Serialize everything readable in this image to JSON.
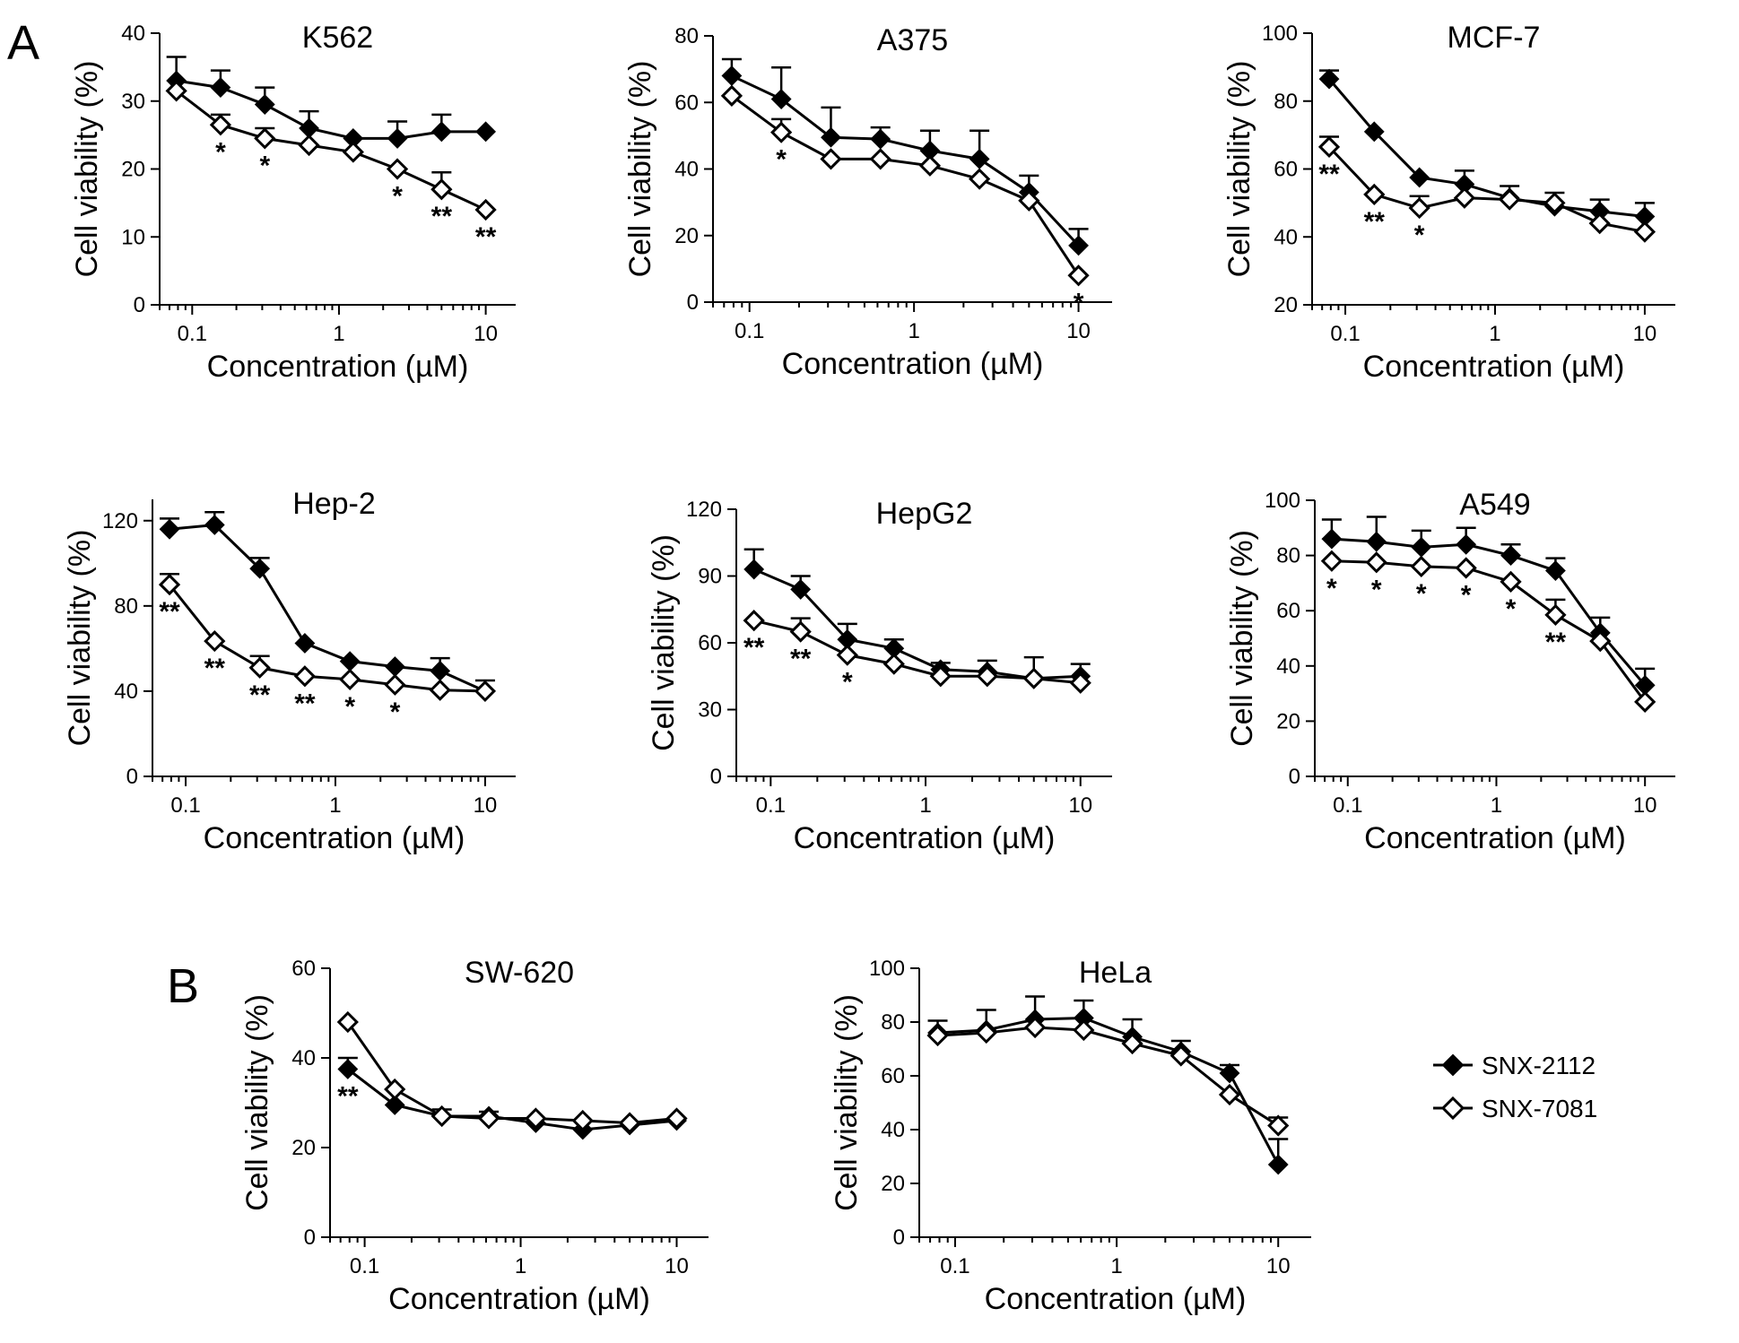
{
  "figure": {
    "panel_labels": [
      "A",
      "B"
    ],
    "legend": [
      {
        "name": "SNX-2112",
        "marker": "filled-diamond"
      },
      {
        "name": "SNX-7081",
        "marker": "open-diamond"
      }
    ]
  },
  "chart_data": [
    {
      "type": "line",
      "title": "K562",
      "xscale": "log",
      "xlabel": "Concentration (µM)",
      "ylabel": "Cell viability (%)",
      "xticks": [
        0.1,
        1,
        10
      ],
      "xtick_labels": [
        "0.1",
        "1",
        "10"
      ],
      "ylim": [
        0,
        40
      ],
      "yticks": [
        0,
        10,
        20,
        30,
        40
      ],
      "ytick_labels": [
        "0",
        "10",
        "20",
        "30",
        "40"
      ],
      "x": [
        0.078,
        0.156,
        0.3125,
        0.625,
        1.25,
        2.5,
        5,
        10
      ],
      "series": [
        {
          "name": "SNX-2112",
          "values": [
            33,
            32,
            29.5,
            26,
            24.5,
            24.5,
            25.5,
            25.5
          ],
          "errors": [
            3.5,
            2.5,
            2.5,
            2.5,
            0,
            2.5,
            2.5,
            0
          ]
        },
        {
          "name": "SNX-7081",
          "values": [
            31.5,
            26.5,
            24.5,
            23.5,
            22.5,
            20,
            17,
            14
          ],
          "errors": [
            0,
            1.5,
            1.5,
            0,
            0,
            0,
            2.5,
            0
          ]
        }
      ],
      "annotations": [
        {
          "x": 0.156,
          "text": "*"
        },
        {
          "x": 0.3125,
          "text": "*"
        },
        {
          "x": 2.5,
          "text": "*"
        },
        {
          "x": 5,
          "text": "**"
        },
        {
          "x": 10,
          "text": "**"
        }
      ]
    },
    {
      "type": "line",
      "title": "A375",
      "xscale": "log",
      "xlabel": "Concentration (µM)",
      "ylabel": "Cell viability (%)",
      "xticks": [
        0.1,
        1,
        10
      ],
      "xtick_labels": [
        "0.1",
        "1",
        "10"
      ],
      "ylim": [
        0,
        80
      ],
      "yticks": [
        0,
        20,
        40,
        60,
        80
      ],
      "ytick_labels": [
        "0",
        "20",
        "40",
        "60",
        "80"
      ],
      "x": [
        0.078,
        0.156,
        0.3125,
        0.625,
        1.25,
        2.5,
        5,
        10
      ],
      "series": [
        {
          "name": "SNX-2112",
          "values": [
            68,
            61,
            49.5,
            49,
            45.5,
            43,
            33,
            17
          ],
          "errors": [
            5,
            9.5,
            9,
            3.5,
            6,
            8.5,
            5,
            5
          ]
        },
        {
          "name": "SNX-7081",
          "values": [
            62,
            51,
            43,
            43,
            41,
            37,
            30.5,
            8
          ],
          "errors": [
            0,
            4,
            0,
            0,
            0,
            0,
            0,
            0
          ]
        }
      ],
      "annotations": [
        {
          "x": 0.156,
          "text": "*"
        },
        {
          "x": 10,
          "text": "*"
        }
      ]
    },
    {
      "type": "line",
      "title": "MCF-7",
      "xscale": "log",
      "xlabel": "Concentration (µM)",
      "ylabel": "Cell viability (%)",
      "xticks": [
        0.1,
        1,
        10
      ],
      "xtick_labels": [
        "0.1",
        "1",
        "10"
      ],
      "ylim": [
        20,
        100
      ],
      "yticks": [
        20,
        40,
        60,
        80,
        100
      ],
      "ytick_labels": [
        "20",
        "40",
        "60",
        "80",
        "100"
      ],
      "x": [
        0.078,
        0.156,
        0.3125,
        0.625,
        1.25,
        2.5,
        5,
        10
      ],
      "series": [
        {
          "name": "SNX-2112",
          "values": [
            86.5,
            71,
            57.5,
            55.5,
            51.5,
            49,
            47.5,
            46
          ],
          "errors": [
            2.5,
            0,
            0,
            4,
            3.5,
            4,
            3.5,
            4
          ]
        },
        {
          "name": "SNX-7081",
          "values": [
            66.5,
            52.5,
            48.5,
            51.5,
            51,
            50,
            44,
            41.5
          ],
          "errors": [
            3,
            0,
            3.5,
            0,
            0,
            0,
            0,
            0
          ]
        }
      ],
      "annotations": [
        {
          "x": 0.078,
          "text": "**"
        },
        {
          "x": 0.156,
          "text": "**"
        },
        {
          "x": 0.3125,
          "text": "*"
        }
      ]
    },
    {
      "type": "line",
      "title": "Hep-2",
      "xscale": "log",
      "xlabel": "Concentration (µM)",
      "ylabel": "Cell viability (%)",
      "xticks": [
        0.1,
        1,
        10
      ],
      "xtick_labels": [
        "0.1",
        "1",
        "10"
      ],
      "ylim": [
        0,
        130
      ],
      "yticks": [
        0,
        40,
        80,
        120
      ],
      "ytick_labels": [
        "0",
        "40",
        "80",
        "120"
      ],
      "x": [
        0.078,
        0.156,
        0.3125,
        0.625,
        1.25,
        2.5,
        5,
        10
      ],
      "series": [
        {
          "name": "SNX-2112",
          "values": [
            116,
            118,
            97.5,
            62.5,
            54,
            51.5,
            49.5,
            40
          ],
          "errors": [
            5,
            6,
            5,
            0,
            0,
            0,
            6,
            5
          ]
        },
        {
          "name": "SNX-7081",
          "values": [
            90,
            63.5,
            51,
            47,
            45.5,
            43,
            40.5,
            40
          ],
          "errors": [
            5,
            0,
            5.5,
            0,
            0,
            0,
            0,
            0
          ]
        }
      ],
      "annotations": [
        {
          "x": 0.078,
          "text": "**"
        },
        {
          "x": 0.156,
          "text": "**"
        },
        {
          "x": 0.3125,
          "text": "**"
        },
        {
          "x": 0.625,
          "text": "**"
        },
        {
          "x": 1.25,
          "text": "*"
        },
        {
          "x": 2.5,
          "text": "*"
        }
      ]
    },
    {
      "type": "line",
      "title": "HepG2",
      "xscale": "log",
      "xlabel": "Concentration (µM)",
      "ylabel": "Cell viability (%)",
      "xticks": [
        0.1,
        1,
        10
      ],
      "xtick_labels": [
        "0.1",
        "1",
        "10"
      ],
      "ylim": [
        0,
        120
      ],
      "yticks": [
        0,
        30,
        60,
        90,
        120
      ],
      "ytick_labels": [
        "0",
        "30",
        "60",
        "90",
        "120"
      ],
      "x": [
        0.078,
        0.156,
        0.3125,
        0.625,
        1.25,
        2.5,
        5,
        10
      ],
      "series": [
        {
          "name": "SNX-2112",
          "values": [
            93,
            84,
            61.5,
            57.5,
            48,
            47,
            44,
            45
          ],
          "errors": [
            9,
            6,
            7,
            4,
            3,
            5,
            9.5,
            5.5
          ]
        },
        {
          "name": "SNX-7081",
          "values": [
            70,
            65,
            54.5,
            50.5,
            45,
            45,
            44,
            42
          ],
          "errors": [
            0,
            6,
            0,
            0,
            0,
            0,
            0,
            0
          ]
        }
      ],
      "annotations": [
        {
          "x": 0.078,
          "text": "**"
        },
        {
          "x": 0.156,
          "text": "**"
        },
        {
          "x": 0.3125,
          "text": "*"
        }
      ]
    },
    {
      "type": "line",
      "title": "A549",
      "xscale": "log",
      "xlabel": "Concentration (µM)",
      "ylabel": "Cell viability (%)",
      "xticks": [
        0.1,
        1,
        10
      ],
      "xtick_labels": [
        "0.1",
        "1",
        "10"
      ],
      "ylim": [
        0,
        100
      ],
      "yticks": [
        0,
        20,
        40,
        60,
        80,
        100
      ],
      "ytick_labels": [
        "0",
        "20",
        "40",
        "60",
        "80",
        "100"
      ],
      "x": [
        0.078,
        0.156,
        0.3125,
        0.625,
        1.25,
        2.5,
        5,
        10
      ],
      "series": [
        {
          "name": "SNX-2112",
          "values": [
            86,
            85,
            83,
            84,
            80,
            74.5,
            52,
            33
          ],
          "errors": [
            7,
            9,
            6,
            6,
            4,
            4.5,
            5.5,
            6
          ]
        },
        {
          "name": "SNX-7081",
          "values": [
            78,
            77.5,
            76,
            75.5,
            70.5,
            58.5,
            49,
            27
          ],
          "errors": [
            0,
            0,
            0,
            0,
            0,
            5.5,
            0,
            0
          ]
        }
      ],
      "annotations": [
        {
          "x": 0.078,
          "text": "*"
        },
        {
          "x": 0.156,
          "text": "*"
        },
        {
          "x": 0.3125,
          "text": "*"
        },
        {
          "x": 0.625,
          "text": "*"
        },
        {
          "x": 1.25,
          "text": "*"
        },
        {
          "x": 2.5,
          "text": "**"
        }
      ]
    },
    {
      "type": "line",
      "title": "SW-620",
      "xscale": "log",
      "xlabel": "Concentration (µM)",
      "ylabel": "Cell viability (%)",
      "xticks": [
        0.1,
        1,
        10
      ],
      "xtick_labels": [
        "0.1",
        "1",
        "10"
      ],
      "ylim": [
        0,
        60
      ],
      "yticks": [
        0,
        20,
        40,
        60
      ],
      "ytick_labels": [
        "0",
        "20",
        "40",
        "60"
      ],
      "x": [
        0.078,
        0.156,
        0.3125,
        0.625,
        1.25,
        2.5,
        5,
        10
      ],
      "series": [
        {
          "name": "SNX-2112",
          "values": [
            37.5,
            29.5,
            27,
            27,
            25.5,
            24,
            25,
            26
          ],
          "errors": [
            2.5,
            0,
            1.5,
            1,
            0,
            0,
            0,
            0
          ]
        },
        {
          "name": "SNX-7081",
          "values": [
            48,
            33,
            27,
            26.5,
            26.5,
            26,
            25.5,
            26.5
          ],
          "errors": [
            0,
            0,
            0,
            0,
            0,
            0,
            0,
            0
          ]
        }
      ],
      "annotations": [
        {
          "x": 0.078,
          "text": "**"
        }
      ]
    },
    {
      "type": "line",
      "title": "HeLa",
      "xscale": "log",
      "xlabel": "Concentration (µM)",
      "ylabel": "Cell viability (%)",
      "xticks": [
        0.1,
        1,
        10
      ],
      "xtick_labels": [
        "0.1",
        "1",
        "10"
      ],
      "ylim": [
        0,
        100
      ],
      "yticks": [
        0,
        20,
        40,
        60,
        80,
        100
      ],
      "ytick_labels": [
        "0",
        "20",
        "40",
        "60",
        "80",
        "100"
      ],
      "x": [
        0.078,
        0.156,
        0.3125,
        0.625,
        1.25,
        2.5,
        5,
        10
      ],
      "series": [
        {
          "name": "SNX-2112",
          "values": [
            76,
            77,
            81,
            81.5,
            74.5,
            69,
            61,
            27
          ],
          "errors": [
            4.5,
            7.5,
            8.5,
            6.5,
            6.5,
            4,
            3,
            9.5
          ]
        },
        {
          "name": "SNX-7081",
          "values": [
            75,
            76,
            78,
            77,
            72,
            67.5,
            53,
            41.5
          ],
          "errors": [
            0,
            0,
            0,
            0,
            0,
            0,
            0,
            3
          ]
        }
      ],
      "annotations": []
    }
  ]
}
